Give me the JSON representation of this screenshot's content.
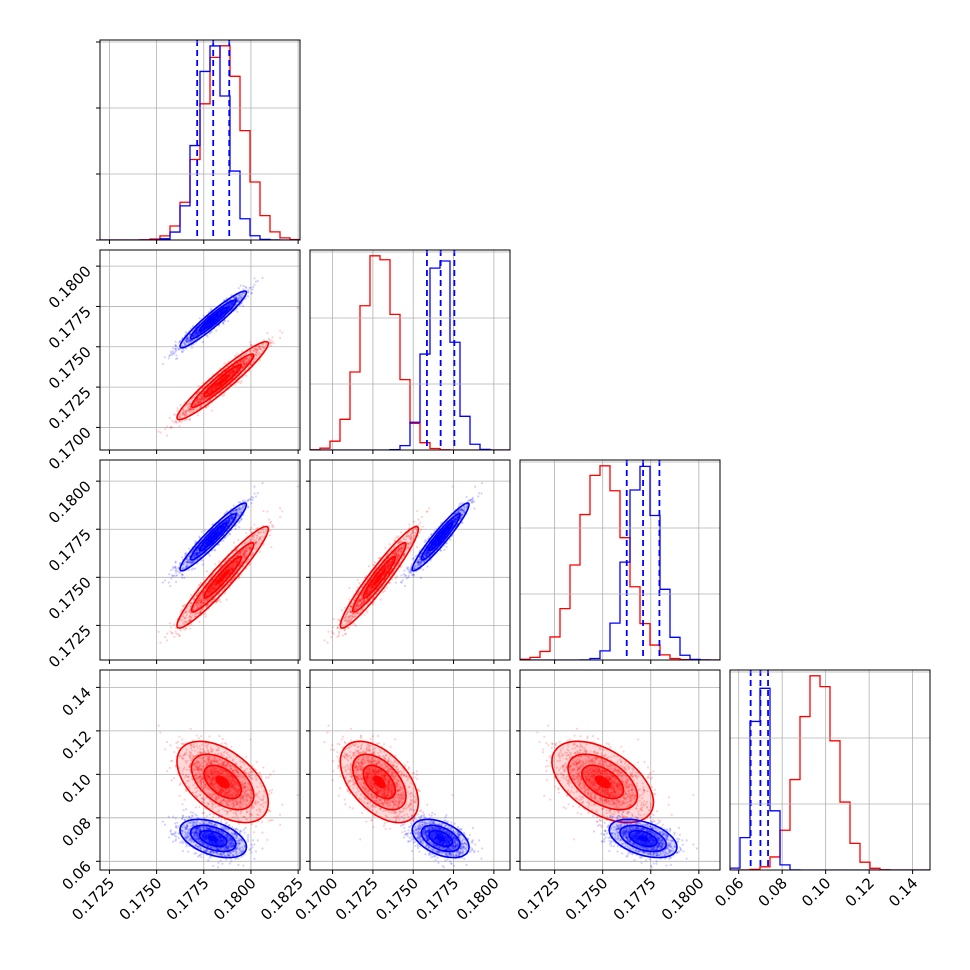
{
  "chart_data": {
    "type": "corner",
    "grid": true,
    "colors": {
      "red": "#ff0000",
      "blue": "#0000ff"
    },
    "series": [
      {
        "color": "red",
        "means": [
          0.1785,
          0.1729,
          0.175,
          0.0965
        ],
        "sds": [
          0.0011,
          0.0011,
          0.0012,
          0.0085
        ],
        "corr": [
          [
            1,
            0.95,
            0.95,
            -0.5
          ],
          [
            0.95,
            1,
            0.95,
            -0.5
          ],
          [
            0.95,
            0.95,
            1,
            -0.5
          ],
          [
            -0.5,
            -0.5,
            -0.5,
            1
          ]
        ]
      },
      {
        "color": "blue",
        "means": [
          0.178,
          0.1767,
          0.1771,
          0.0705
        ],
        "sds": [
          0.0008,
          0.0008,
          0.0008,
          0.004
        ],
        "corr": [
          [
            1,
            0.95,
            0.95,
            -0.45
          ],
          [
            0.95,
            1,
            0.95,
            -0.45
          ],
          [
            0.95,
            0.95,
            1,
            -0.45
          ],
          [
            -0.45,
            -0.45,
            -0.45,
            1
          ]
        ]
      }
    ],
    "quantiles_blue": [
      [
        0.17715,
        0.178,
        0.17885
      ],
      [
        0.17585,
        0.1767,
        0.17755
      ],
      [
        0.17625,
        0.1771,
        0.17795
      ],
      [
        0.0655,
        0.07,
        0.0735
      ]
    ],
    "diagonal_ranges": [
      [
        0.172,
        0.1826
      ],
      [
        0.1686,
        0.181
      ],
      [
        0.1707,
        0.1811
      ],
      [
        0.056,
        0.148
      ]
    ],
    "diagonal_ticks": [
      [
        "0.1725",
        "0.1750",
        "0.1775",
        "0.1800",
        "0.1825"
      ],
      [
        "0.1700",
        "0.1725",
        "0.1750",
        "0.1775",
        "0.1800"
      ],
      [
        "0.1725",
        "0.1750",
        "0.1775",
        "0.1800"
      ],
      [
        "0.06",
        "0.08",
        "0.10",
        "0.12",
        "0.14"
      ]
    ],
    "row_y_ticks": [
      null,
      [
        "0.1700",
        "0.1725",
        "0.1750",
        "0.1775",
        "0.1800"
      ],
      [
        "0.1725",
        "0.1750",
        "0.1775",
        "0.1800"
      ],
      [
        "0.06",
        "0.08",
        "0.10",
        "0.12",
        "0.14"
      ]
    ],
    "panels": [
      {
        "id": "hist-0",
        "row": 0,
        "col": 0
      },
      {
        "id": "scatter-1-0",
        "row": 1,
        "col": 0
      },
      {
        "id": "hist-1",
        "row": 1,
        "col": 1
      },
      {
        "id": "scatter-2-0",
        "row": 2,
        "col": 0
      },
      {
        "id": "scatter-2-1",
        "row": 2,
        "col": 1
      },
      {
        "id": "hist-2",
        "row": 2,
        "col": 2
      },
      {
        "id": "scatter-3-0",
        "row": 3,
        "col": 0
      },
      {
        "id": "scatter-3-1",
        "row": 3,
        "col": 1
      },
      {
        "id": "scatter-3-2",
        "row": 3,
        "col": 2
      },
      {
        "id": "hist-3",
        "row": 3,
        "col": 3
      }
    ]
  }
}
